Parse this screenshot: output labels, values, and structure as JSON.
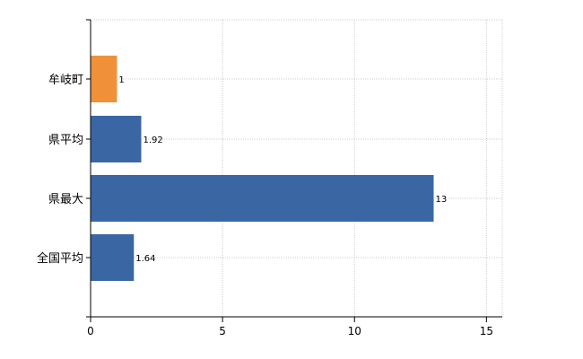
{
  "chart_data": {
    "type": "bar",
    "orientation": "horizontal",
    "categories": [
      "牟岐町",
      "県平均",
      "県最大",
      "全国平均"
    ],
    "values": [
      1,
      1.92,
      13,
      1.64
    ],
    "data_labels": [
      "1",
      "1.92",
      "13",
      "1.64"
    ],
    "bar_colors": [
      "#f0913a",
      "#3a67a4",
      "#3a67a4",
      "#3a67a4"
    ],
    "x_ticks": [
      "0",
      "5",
      "10",
      "15"
    ],
    "xlim": [
      0,
      15.6
    ],
    "title": "",
    "xlabel": "",
    "ylabel": "",
    "grid": true,
    "legend": "none"
  },
  "colors": {
    "highlight": "#f0913a",
    "default_bar": "#3a67a4",
    "grid": "#d0d0d0",
    "axis": "#000000"
  }
}
